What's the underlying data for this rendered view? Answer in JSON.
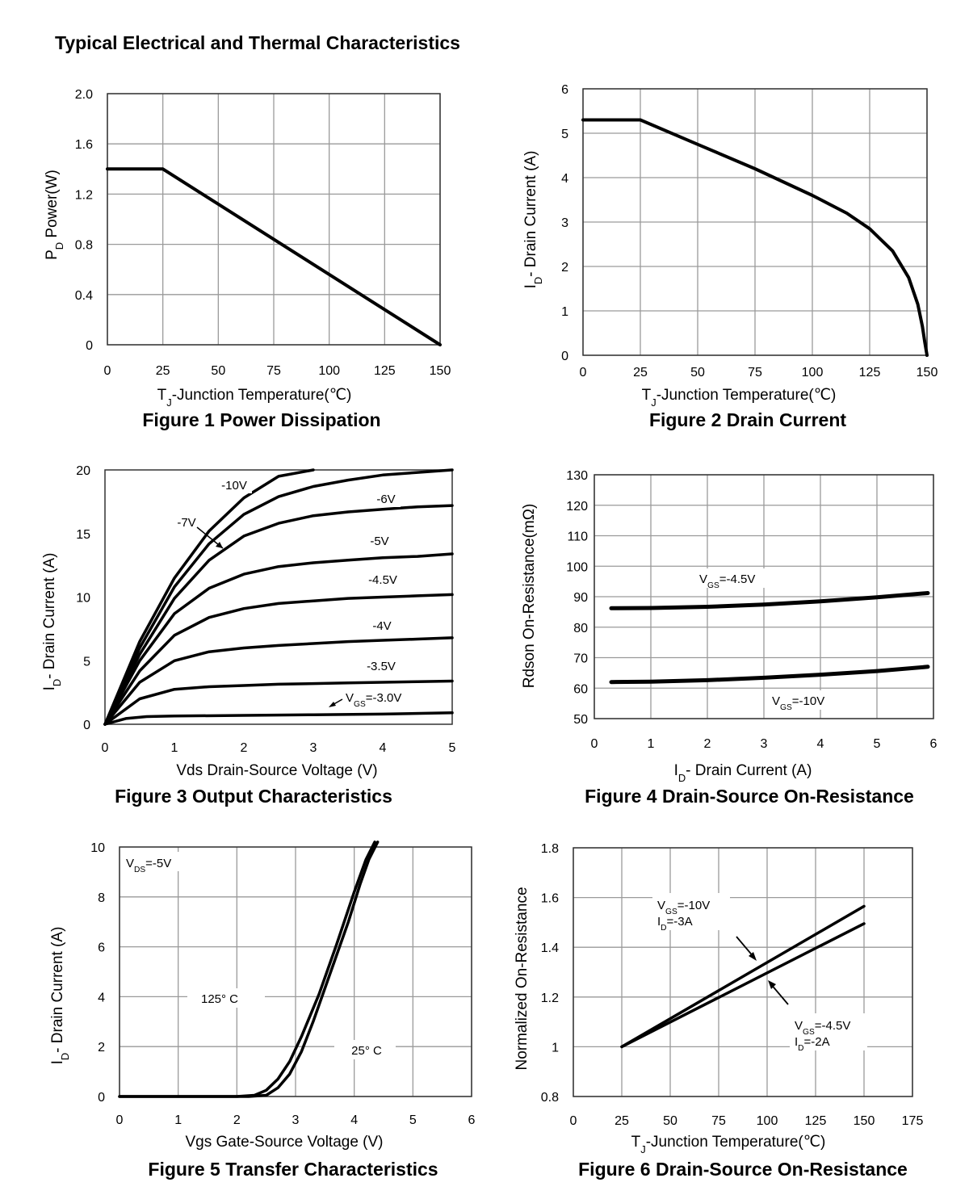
{
  "page": {
    "title": "Typical Electrical and Thermal Characteristics"
  },
  "chart_data": [
    {
      "id": "fig1",
      "type": "line",
      "title": "Figure 1 Power Dissipation",
      "xlabel": "TJ-Junction Temperature(℃)",
      "ylabel": "PD  Power(W)",
      "xlim": [
        0,
        150
      ],
      "ylim": [
        0,
        2.0
      ],
      "xticks": [
        "0",
        "25",
        "50",
        "75",
        "100",
        "125",
        "150"
      ],
      "yticks": [
        "0",
        "0.4",
        "0.8",
        "1.2",
        "1.6",
        "2.0"
      ],
      "grid": true,
      "series": [
        {
          "x": [
            0,
            25,
            150
          ],
          "y": [
            1.4,
            1.4,
            0
          ]
        }
      ],
      "annotations": []
    },
    {
      "id": "fig2",
      "type": "line",
      "title": "Figure 2 Drain Current",
      "xlabel": "TJ-Junction Temperature(℃)",
      "ylabel": "ID- Drain Current (A)",
      "xlim": [
        0,
        150
      ],
      "ylim": [
        0,
        6
      ],
      "xticks": [
        "0",
        "25",
        "50",
        "75",
        "100",
        "125",
        "150"
      ],
      "yticks": [
        "0",
        "1",
        "2",
        "3",
        "4",
        "5",
        "6"
      ],
      "grid": true,
      "series": [
        {
          "x": [
            0,
            25,
            50,
            75,
            100,
            115,
            125,
            135,
            142,
            146,
            148,
            149,
            150
          ],
          "y": [
            5.3,
            5.3,
            4.75,
            4.2,
            3.6,
            3.2,
            2.85,
            2.35,
            1.75,
            1.15,
            0.65,
            0.3,
            0
          ]
        }
      ],
      "annotations": []
    },
    {
      "id": "fig3",
      "type": "line",
      "title": "Figure 3 Output Characteristics",
      "xlabel": "Vds Drain-Source Voltage (V)",
      "ylabel": "ID- Drain Current (A)",
      "xlim": [
        0,
        5
      ],
      "ylim": [
        0,
        20
      ],
      "xticks": [
        "0",
        "1",
        "2",
        "3",
        "4",
        "5"
      ],
      "yticks": [
        "0",
        "5",
        "10",
        "15",
        "20"
      ],
      "grid": false,
      "series": [
        {
          "x": [
            0,
            0.5,
            1,
            1.5,
            2,
            2.5,
            3
          ],
          "y": [
            0,
            6.5,
            11.5,
            15.2,
            17.8,
            19.5,
            20.0
          ]
        },
        {
          "x": [
            0,
            0.5,
            1,
            1.5,
            2,
            2.5,
            3,
            3.5,
            4,
            4.5,
            5
          ],
          "y": [
            0,
            6,
            10.8,
            14.2,
            16.5,
            17.9,
            18.7,
            19.2,
            19.6,
            19.8,
            20.0
          ]
        },
        {
          "x": [
            0,
            0.5,
            1,
            1.5,
            2,
            2.5,
            3,
            3.5,
            4,
            4.5,
            5
          ],
          "y": [
            0,
            5.5,
            9.9,
            12.9,
            14.8,
            15.8,
            16.4,
            16.7,
            16.9,
            17.1,
            17.2
          ]
        },
        {
          "x": [
            0,
            0.5,
            1,
            1.5,
            2,
            2.5,
            3,
            3.5,
            4,
            4.5,
            5
          ],
          "y": [
            0,
            5,
            8.7,
            10.7,
            11.8,
            12.4,
            12.7,
            12.9,
            13.1,
            13.2,
            13.4
          ]
        },
        {
          "x": [
            0,
            0.5,
            1,
            1.5,
            2,
            2.5,
            3,
            3.5,
            4,
            4.5,
            5
          ],
          "y": [
            0,
            4.2,
            7.0,
            8.4,
            9.1,
            9.5,
            9.7,
            9.9,
            10.0,
            10.1,
            10.2
          ]
        },
        {
          "x": [
            0,
            0.5,
            1,
            1.5,
            2,
            2.5,
            3,
            3.5,
            4,
            4.5,
            5
          ],
          "y": [
            0,
            3.3,
            5.0,
            5.7,
            6.0,
            6.2,
            6.35,
            6.5,
            6.6,
            6.7,
            6.8
          ]
        },
        {
          "x": [
            0,
            0.5,
            1,
            1.5,
            2,
            2.5,
            3,
            3.5,
            4,
            4.5,
            5
          ],
          "y": [
            0,
            2.0,
            2.75,
            2.95,
            3.05,
            3.15,
            3.2,
            3.25,
            3.3,
            3.35,
            3.4
          ]
        },
        {
          "x": [
            0,
            0.3,
            0.6,
            1,
            2,
            3,
            4,
            5
          ],
          "y": [
            0,
            0.45,
            0.6,
            0.65,
            0.7,
            0.75,
            0.8,
            0.9
          ]
        }
      ],
      "annotations": [
        "-10V",
        "-7V",
        "-6V",
        "-5V",
        "-4.5V",
        "-4V",
        "-3.5V",
        "VGS=-3.0V"
      ]
    },
    {
      "id": "fig4",
      "type": "line",
      "title": "Figure 4 Drain-Source On-Resistance",
      "xlabel": "ID- Drain Current (A)",
      "ylabel": "Rdson On-Resistance(mΩ)",
      "xlim": [
        0,
        6
      ],
      "ylim": [
        50,
        130
      ],
      "xticks": [
        "0",
        "1",
        "2",
        "3",
        "4",
        "5",
        "6"
      ],
      "yticks": [
        "50",
        "60",
        "70",
        "80",
        "90",
        "100",
        "110",
        "120",
        "130"
      ],
      "grid": true,
      "series": [
        {
          "x": [
            0.3,
            1,
            2,
            3,
            4,
            5,
            5.9
          ],
          "y": [
            86.2,
            86.3,
            86.7,
            87.4,
            88.5,
            89.8,
            91.2
          ]
        },
        {
          "x": [
            0.3,
            1,
            2,
            3,
            4,
            5,
            5.9
          ],
          "y": [
            62.0,
            62.1,
            62.6,
            63.4,
            64.4,
            65.6,
            67.0
          ]
        }
      ],
      "annotations": [
        "VGS=-4.5V",
        "VGS=-10V"
      ]
    },
    {
      "id": "fig5",
      "type": "line",
      "title": "Figure 5 Transfer Characteristics",
      "xlabel": "Vgs Gate-Source Voltage (V)",
      "ylabel": "ID- Drain Current (A)",
      "xlim": [
        0,
        6
      ],
      "ylim": [
        0,
        10
      ],
      "xticks": [
        "0",
        "1",
        "2",
        "3",
        "4",
        "5",
        "6"
      ],
      "yticks": [
        "0",
        "2",
        "4",
        "6",
        "8",
        "10"
      ],
      "grid": true,
      "series": [
        {
          "x": [
            0,
            2.0,
            2.3,
            2.5,
            2.7,
            2.9,
            3.1,
            3.4,
            3.7,
            4.0,
            4.2,
            4.35
          ],
          "y": [
            0,
            0,
            0.05,
            0.25,
            0.7,
            1.4,
            2.4,
            4.1,
            6.1,
            8.2,
            9.5,
            10.2
          ]
        },
        {
          "x": [
            0,
            2.2,
            2.5,
            2.7,
            2.9,
            3.1,
            3.3,
            3.6,
            3.9,
            4.1,
            4.25,
            4.4
          ],
          "y": [
            0,
            0,
            0.05,
            0.35,
            0.9,
            1.8,
            3.0,
            5.0,
            7.0,
            8.5,
            9.5,
            10.2
          ]
        }
      ],
      "annotations": [
        "VDS=-5V",
        "125° C",
        "25° C"
      ]
    },
    {
      "id": "fig6",
      "type": "line",
      "title": "Figure 6 Drain-Source On-Resistance",
      "xlabel": "TJ-Junction Temperature(℃)",
      "ylabel": "Normalized On-Resistance",
      "xlim": [
        0,
        175
      ],
      "ylim": [
        0.8,
        1.8
      ],
      "xticks": [
        "0",
        "25",
        "50",
        "75",
        "100",
        "125",
        "150",
        "175"
      ],
      "yticks": [
        "0.8",
        "1",
        "1.2",
        "1.4",
        "1.6",
        "1.8"
      ],
      "grid": true,
      "series": [
        {
          "x": [
            25,
            150
          ],
          "y": [
            1.0,
            1.565
          ]
        },
        {
          "x": [
            25,
            150
          ],
          "y": [
            1.0,
            1.495
          ]
        }
      ],
      "annotations": [
        "VGS=-10V",
        "ID=-3A",
        "VGS=-4.5V",
        "ID=-2A"
      ]
    }
  ]
}
